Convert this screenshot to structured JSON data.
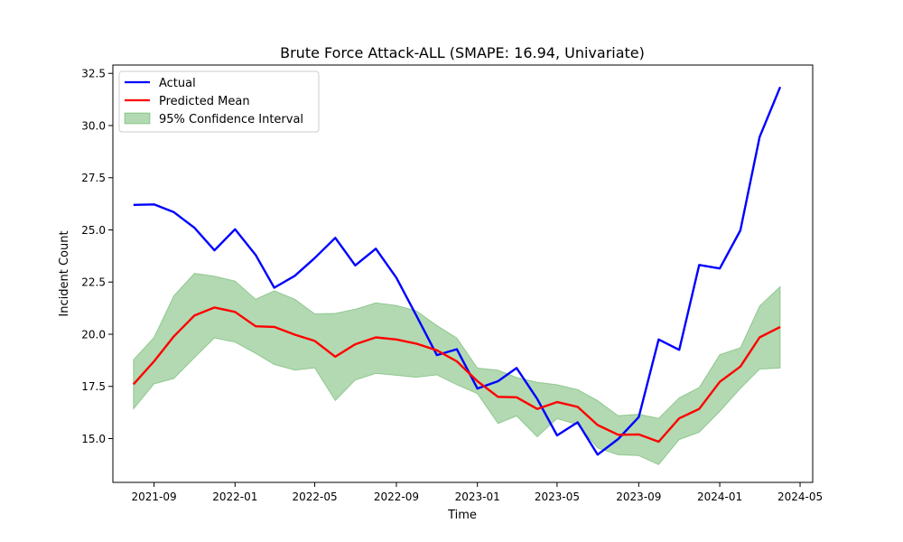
{
  "chart_data": {
    "type": "line",
    "title": "Brute Force Attack-ALL (SMAPE: 16.94, Univariate)",
    "xlabel": "Time",
    "ylabel": "Incident Count",
    "x": [
      "2021-08-01",
      "2021-09-01",
      "2021-10-01",
      "2021-11-01",
      "2021-12-01",
      "2022-01-01",
      "2022-02-01",
      "2022-03-01",
      "2022-04-01",
      "2022-05-01",
      "2022-06-01",
      "2022-07-01",
      "2022-08-01",
      "2022-09-01",
      "2022-10-01",
      "2022-11-01",
      "2022-12-01",
      "2023-01-01",
      "2023-02-01",
      "2023-03-01",
      "2023-04-01",
      "2023-05-01",
      "2023-06-01",
      "2023-07-01",
      "2023-08-01",
      "2023-09-01",
      "2023-10-01",
      "2023-11-01",
      "2023-12-01",
      "2024-01-01",
      "2024-02-01",
      "2024-03-01",
      "2024-04-01"
    ],
    "xlim": [
      "2021-07-01",
      "2024-05-20"
    ],
    "ylim": [
      12.9,
      32.9
    ],
    "x_ticks": [
      "2021-09-01",
      "2022-01-01",
      "2022-05-01",
      "2022-09-01",
      "2023-01-01",
      "2023-05-01",
      "2023-09-01",
      "2024-01-01",
      "2024-05-01"
    ],
    "x_tick_labels": [
      "2021-09",
      "2022-01",
      "2022-05",
      "2022-09",
      "2023-01",
      "2023-05",
      "2023-09",
      "2024-01",
      "2024-05"
    ],
    "y_ticks": [
      15.0,
      17.5,
      20.0,
      22.5,
      25.0,
      27.5,
      30.0,
      32.5
    ],
    "y_tick_labels": [
      "15.0",
      "17.5",
      "20.0",
      "22.5",
      "25.0",
      "27.5",
      "30.0",
      "32.5"
    ],
    "grid": false,
    "legend_position": "top-left",
    "series": [
      {
        "name": "Actual",
        "color": "#0000ff",
        "values": [
          26.2,
          26.22,
          25.85,
          25.1,
          24.02,
          25.03,
          23.8,
          22.23,
          22.8,
          23.65,
          24.62,
          23.3,
          24.1,
          22.7,
          20.9,
          19.0,
          19.28,
          17.4,
          17.75,
          18.38,
          16.9,
          15.15,
          15.78,
          14.23,
          14.98,
          16.03,
          19.75,
          19.25,
          23.32,
          23.15,
          24.98,
          29.45,
          31.85
        ]
      },
      {
        "name": "Predicted Mean",
        "color": "#ff0000",
        "values": [
          17.6,
          18.7,
          19.9,
          20.9,
          21.28,
          21.07,
          20.38,
          20.35,
          19.98,
          19.68,
          18.92,
          19.52,
          19.85,
          19.75,
          19.55,
          19.23,
          18.7,
          17.75,
          17.0,
          16.98,
          16.42,
          16.75,
          16.52,
          15.65,
          15.18,
          15.2,
          14.85,
          15.97,
          16.42,
          17.72,
          18.45,
          19.85,
          20.35
        ]
      }
    ],
    "band": {
      "name": "95% Confidence Interval",
      "color": "#008000",
      "lower": [
        16.42,
        17.62,
        17.88,
        18.88,
        19.82,
        19.62,
        19.08,
        18.55,
        18.28,
        18.38,
        16.82,
        17.8,
        18.12,
        18.03,
        17.93,
        18.05,
        17.58,
        17.15,
        15.72,
        16.08,
        15.08,
        15.95,
        15.67,
        14.55,
        14.22,
        14.18,
        13.75,
        14.95,
        15.3,
        16.3,
        17.4,
        18.32,
        18.38
      ],
      "upper": [
        18.78,
        19.85,
        21.85,
        22.92,
        22.78,
        22.55,
        21.68,
        22.08,
        21.68,
        20.98,
        21.0,
        21.2,
        21.5,
        21.38,
        21.12,
        20.42,
        19.82,
        18.38,
        18.28,
        17.93,
        17.7,
        17.58,
        17.35,
        16.82,
        16.1,
        16.17,
        15.97,
        16.95,
        17.45,
        19.02,
        19.35,
        21.35,
        22.28
      ]
    }
  }
}
